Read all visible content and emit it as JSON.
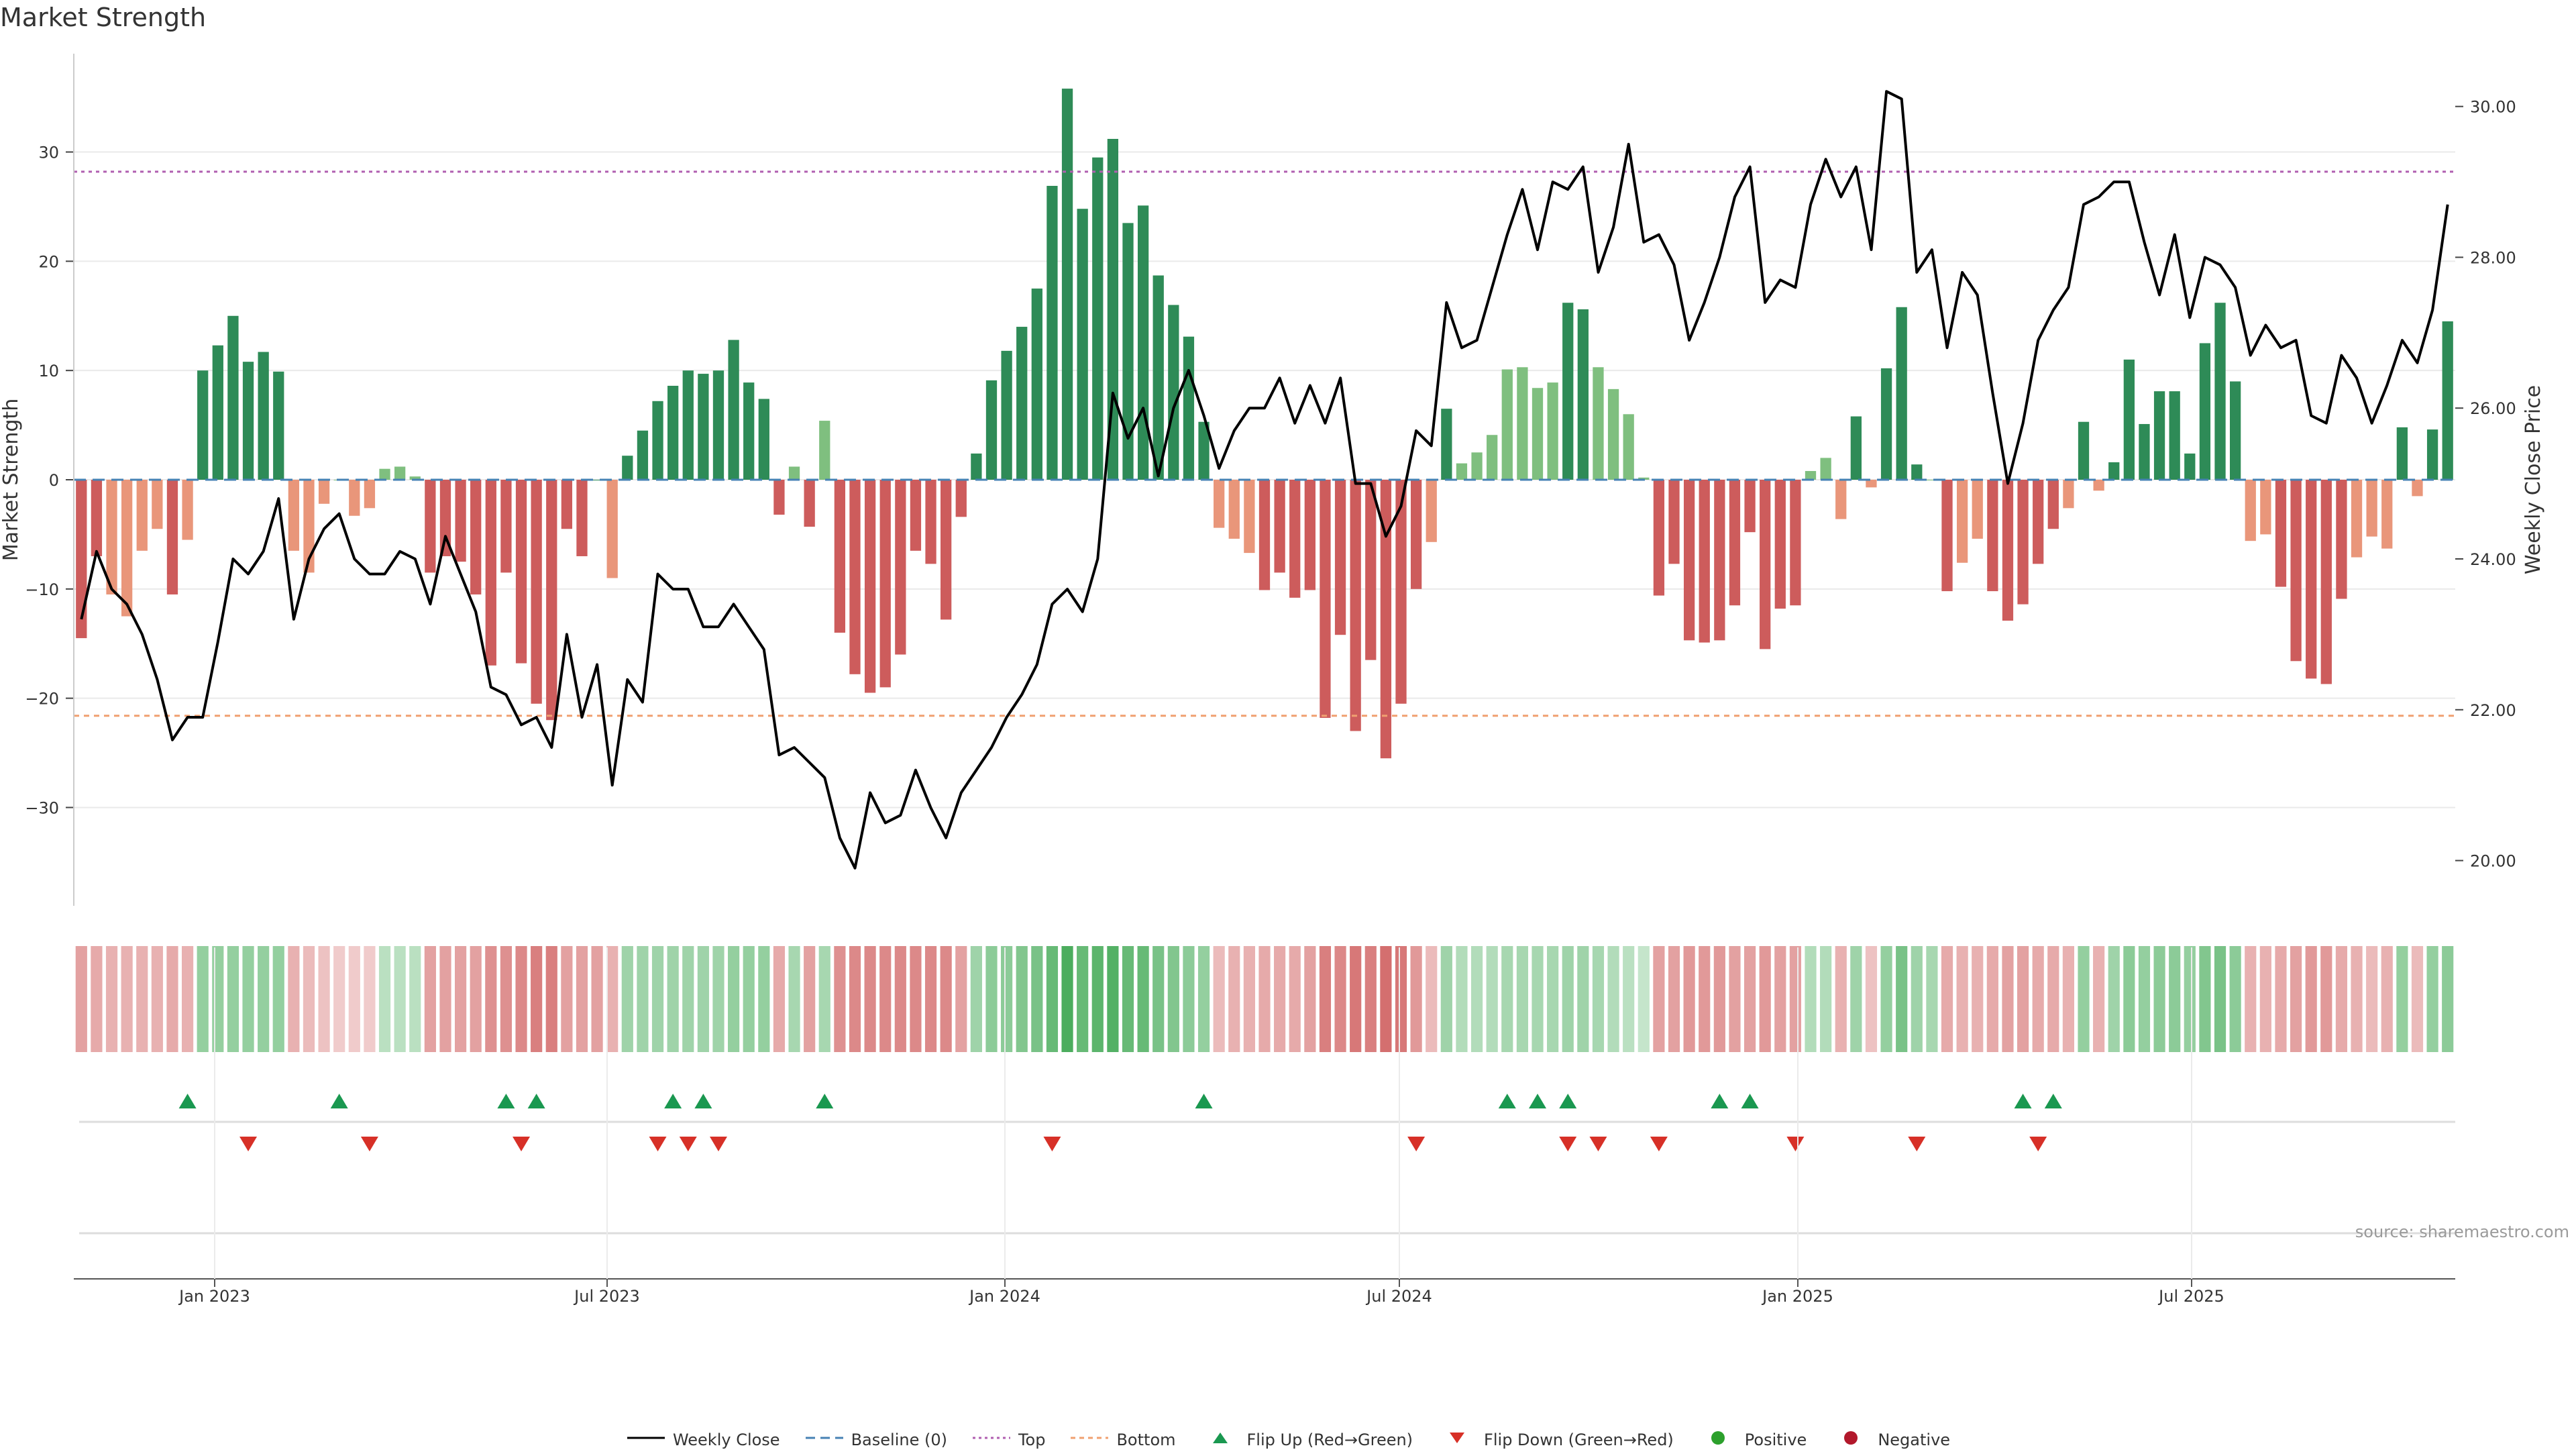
{
  "title": "Market Strength",
  "source": "source: sharemaestro.com",
  "colors": {
    "pos_strong": "#2e8b57",
    "pos_light": "#7fbf7f",
    "neg_strong": "#cd5c5c",
    "neg_light": "#e9967a",
    "close": "#000000",
    "baseline": "#4682b4",
    "top": "#b05fb0",
    "bottom": "#f0a070",
    "flip_up": "#1a9850",
    "flip_down": "#d73027",
    "grid": "#eaeaea",
    "positive_dot": "#2ca02c",
    "negative_dot": "#b2182b"
  },
  "chart_data": {
    "type": "bar",
    "title": "Market Strength",
    "ylabel": "Market Strength",
    "y2label": "Weekly Close Price",
    "ylim": [
      -39,
      39
    ],
    "y2lim": [
      19.4,
      30.7
    ],
    "yticks": [
      30,
      20,
      10,
      0,
      -10,
      -20,
      -30
    ],
    "yticklabels": [
      "30",
      "20",
      "10",
      "0",
      "−10",
      "−20",
      "−30"
    ],
    "y2ticks": [
      30,
      28,
      26,
      24,
      22,
      20
    ],
    "y2ticklabels": [
      "30.00",
      "28.00",
      "26.00",
      "24.00",
      "22.00",
      "20.00"
    ],
    "xticks": [
      "Jan 2023",
      "Jul 2023",
      "Jan 2024",
      "Jul 2024",
      "Jan 2025",
      "Jul 2025"
    ],
    "top_level": 28.2,
    "bottom_level": -21.6,
    "baseline": 0,
    "grid": true,
    "strength": [
      -14.5,
      -7,
      -10.5,
      -12.5,
      -6.5,
      -4.5,
      -10.5,
      -5.5,
      10,
      12.3,
      15,
      10.8,
      11.7,
      9.9,
      -6.5,
      -8.5,
      -2.2,
      0,
      -3.3,
      -2.6,
      1,
      1.2,
      0.3,
      -8.5,
      -7,
      -7.5,
      -10.5,
      -17,
      -8.5,
      -16.8,
      -20.5,
      -22,
      -4.5,
      -7,
      0,
      -9,
      2.2,
      4.5,
      7.2,
      8.6,
      10,
      9.7,
      10,
      12.8,
      8.9,
      7.4,
      -3.2,
      1.2,
      -4.3,
      5.4,
      -14,
      -17.8,
      -19.5,
      -19,
      -16,
      -6.5,
      -7.7,
      -12.8,
      -3.4,
      2.4,
      9.1,
      11.8,
      14,
      17.5,
      26.9,
      35.8,
      24.8,
      29.5,
      31.2,
      23.5,
      25.1,
      18.7,
      16,
      13.1,
      5.3,
      -4.4,
      -5.4,
      -6.7,
      -10.1,
      -8.5,
      -10.8,
      -10.1,
      -21.8,
      -14.2,
      -23,
      -16.5,
      -25.5,
      -20.5,
      -10,
      -5.7,
      6.5,
      1.5,
      2.5,
      4.1,
      10.1,
      10.3,
      8.4,
      8.9,
      16.2,
      15.6,
      10.3,
      8.3,
      6,
      0.2,
      -10.6,
      -7.7,
      -14.7,
      -14.9,
      -14.7,
      -11.5,
      -4.8,
      -15.5,
      -11.8,
      -11.5,
      0.8,
      2,
      -3.6,
      5.8,
      -0.7,
      10.2,
      15.8,
      1.4,
      0,
      -10.2,
      -7.6,
      -5.4,
      -10.2,
      -12.9,
      -11.4,
      -7.7,
      -4.5,
      -2.6,
      5.3,
      -1,
      1.6,
      11,
      5.1,
      8.1,
      8.1,
      2.4,
      12.5,
      16.2,
      9,
      -5.6,
      -5,
      -9.8,
      -16.6,
      -18.2,
      -18.7,
      -10.9,
      -7.1,
      -5.2,
      -6.3,
      4.8,
      -1.5,
      4.6,
      14.5
    ],
    "close": [
      23.2,
      24.1,
      23.6,
      23.4,
      23.0,
      22.4,
      21.6,
      21.9,
      21.9,
      22.9,
      24.0,
      23.8,
      24.1,
      24.8,
      23.2,
      24.0,
      24.4,
      24.6,
      24.0,
      23.8,
      23.8,
      24.1,
      24.0,
      23.4,
      24.3,
      23.8,
      23.3,
      22.3,
      22.2,
      21.8,
      21.9,
      21.5,
      23.0,
      21.9,
      22.6,
      21.0,
      22.4,
      22.1,
      23.8,
      23.6,
      23.6,
      23.1,
      23.1,
      23.4,
      23.1,
      22.8,
      21.4,
      21.5,
      21.3,
      21.1,
      20.3,
      19.9,
      20.9,
      20.5,
      20.6,
      21.2,
      20.7,
      20.3,
      20.9,
      21.2,
      21.5,
      21.9,
      22.2,
      22.6,
      23.4,
      23.6,
      23.3,
      24.0,
      26.2,
      25.6,
      26.0,
      25.1,
      26.0,
      26.5,
      25.9,
      25.2,
      25.7,
      26.0,
      26.0,
      26.4,
      25.8,
      26.3,
      25.8,
      26.4,
      25.0,
      25.0,
      24.3,
      24.7,
      25.7,
      25.5,
      27.4,
      26.8,
      26.9,
      27.6,
      28.3,
      28.9,
      28.1,
      29.0,
      28.9,
      29.2,
      27.8,
      28.4,
      29.5,
      28.2,
      28.3,
      27.9,
      26.9,
      27.4,
      28.0,
      28.8,
      29.2,
      27.4,
      27.7,
      27.6,
      28.7,
      29.3,
      28.8,
      29.2,
      28.1,
      30.2,
      30.1,
      27.8,
      28.1,
      26.8,
      27.8,
      27.5,
      26.2,
      25.0,
      25.8,
      26.9,
      27.3,
      27.6,
      28.7,
      28.8,
      29.0,
      29.0,
      28.2,
      27.5,
      28.3,
      27.2,
      28.0,
      27.9,
      27.6,
      26.7,
      27.1,
      26.8,
      26.9,
      25.9,
      25.8,
      26.7,
      26.4,
      25.8,
      26.3,
      26.9,
      26.6,
      27.3,
      28.7
    ],
    "intensity": [
      -0.45,
      -0.4,
      -0.35,
      -0.35,
      -0.35,
      -0.35,
      -0.4,
      -0.35,
      0.45,
      0.45,
      0.45,
      0.45,
      0.45,
      0.45,
      -0.35,
      -0.3,
      -0.25,
      -0.2,
      -0.2,
      -0.2,
      0.25,
      0.25,
      0.25,
      -0.45,
      -0.45,
      -0.45,
      -0.45,
      -0.55,
      -0.55,
      -0.6,
      -0.65,
      -0.65,
      -0.45,
      -0.45,
      -0.45,
      -0.35,
      0.4,
      0.4,
      0.4,
      0.4,
      0.4,
      0.4,
      0.4,
      0.45,
      0.45,
      0.45,
      -0.4,
      0.35,
      -0.45,
      0.35,
      -0.55,
      -0.6,
      -0.6,
      -0.6,
      -0.6,
      -0.6,
      -0.6,
      -0.6,
      -0.45,
      0.4,
      0.5,
      0.5,
      0.55,
      0.6,
      0.7,
      0.85,
      0.7,
      0.75,
      0.8,
      0.7,
      0.7,
      0.6,
      0.55,
      0.5,
      0.45,
      -0.3,
      -0.35,
      -0.35,
      -0.4,
      -0.4,
      -0.4,
      -0.45,
      -0.65,
      -0.6,
      -0.7,
      -0.65,
      -0.75,
      -0.7,
      -0.5,
      -0.3,
      0.4,
      0.3,
      0.3,
      0.3,
      0.35,
      0.35,
      0.35,
      0.35,
      0.4,
      0.4,
      0.35,
      0.3,
      0.25,
      0.2,
      -0.45,
      -0.45,
      -0.5,
      -0.5,
      -0.5,
      -0.45,
      -0.45,
      -0.5,
      -0.45,
      -0.45,
      0.3,
      0.3,
      -0.35,
      0.4,
      -0.25,
      0.45,
      0.6,
      0.4,
      0.35,
      -0.4,
      -0.35,
      -0.35,
      -0.4,
      -0.45,
      -0.45,
      -0.4,
      -0.4,
      -0.35,
      0.45,
      -0.35,
      0.4,
      0.5,
      0.45,
      0.5,
      0.5,
      0.45,
      0.55,
      0.6,
      0.5,
      -0.35,
      -0.35,
      -0.4,
      -0.45,
      -0.5,
      -0.5,
      -0.4,
      -0.35,
      -0.3,
      -0.35,
      0.45,
      -0.3,
      0.45,
      0.5
    ],
    "flip_up": [
      7,
      17,
      28,
      30,
      39,
      41,
      49,
      74,
      94,
      96,
      98,
      108,
      110,
      128,
      130
    ],
    "flip_down": [
      11,
      19,
      29,
      38,
      40,
      42,
      64,
      88,
      98,
      100,
      104,
      113,
      121,
      129
    ],
    "series": [
      {
        "name": "Weekly Close"
      },
      {
        "name": "Baseline (0)"
      },
      {
        "name": "Top"
      },
      {
        "name": "Bottom"
      },
      {
        "name": "Flip Up (Red→Green)"
      },
      {
        "name": "Flip Down (Green→Red)"
      },
      {
        "name": "Positive"
      },
      {
        "name": "Negative"
      }
    ]
  }
}
